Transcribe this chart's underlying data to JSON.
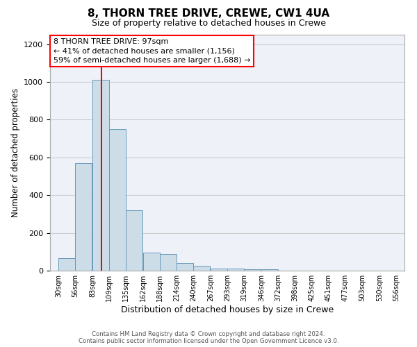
{
  "title": "8, THORN TREE DRIVE, CREWE, CW1 4UA",
  "subtitle": "Size of property relative to detached houses in Crewe",
  "xlabel": "Distribution of detached houses by size in Crewe",
  "ylabel": "Number of detached properties",
  "bin_labels": [
    "30sqm",
    "56sqm",
    "83sqm",
    "109sqm",
    "135sqm",
    "162sqm",
    "188sqm",
    "214sqm",
    "240sqm",
    "267sqm",
    "293sqm",
    "319sqm",
    "346sqm",
    "372sqm",
    "398sqm",
    "425sqm",
    "451sqm",
    "477sqm",
    "503sqm",
    "530sqm",
    "556sqm"
  ],
  "bin_edges": [
    30,
    56,
    83,
    109,
    135,
    162,
    188,
    214,
    240,
    267,
    293,
    319,
    346,
    372,
    398,
    425,
    451,
    477,
    503,
    530,
    556
  ],
  "bar_heights": [
    65,
    570,
    1010,
    750,
    320,
    95,
    90,
    40,
    25,
    12,
    10,
    8,
    8,
    0,
    0,
    0,
    0,
    0,
    0,
    0
  ],
  "bar_color": "#ccdde8",
  "bar_edge_color": "#6699bb",
  "grid_color": "#cccccc",
  "background_color": "#eef2f8",
  "vline_x": 97,
  "vline_color": "red",
  "annotation_text": "8 THORN TREE DRIVE: 97sqm\n← 41% of detached houses are smaller (1,156)\n59% of semi-detached houses are larger (1,688) →",
  "annotation_box_color": "white",
  "annotation_box_edge": "red",
  "ylim": [
    0,
    1250
  ],
  "yticks": [
    0,
    200,
    400,
    600,
    800,
    1000,
    1200
  ],
  "footer_line1": "Contains HM Land Registry data © Crown copyright and database right 2024.",
  "footer_line2": "Contains public sector information licensed under the Open Government Licence v3.0."
}
